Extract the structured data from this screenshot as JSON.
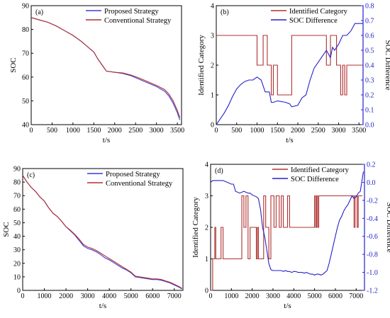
{
  "colors": {
    "blue": "#3b3bd6",
    "red": "#b03030",
    "axis_right_blue": "#2222cc"
  },
  "chart_data": [
    {
      "id": "a",
      "type": "line",
      "panel_label": "(a)",
      "xlabel": "t/s",
      "ylabel": "SOC",
      "xlim": [
        0,
        3600
      ],
      "ylim": [
        40,
        90
      ],
      "xticks": [
        0,
        500,
        1000,
        1500,
        2000,
        2500,
        3000,
        3500
      ],
      "yticks": [
        40,
        50,
        60,
        70,
        80,
        90
      ],
      "legend_position": "top-right",
      "series": [
        {
          "name": "Proposed Strategy",
          "color": "#3b3bd6",
          "x": [
            0,
            200,
            400,
            600,
            800,
            1000,
            1200,
            1400,
            1500,
            1600,
            1700,
            1800,
            2000,
            2200,
            2400,
            2600,
            2800,
            3000,
            3200,
            3300,
            3400,
            3500,
            3560
          ],
          "y": [
            85,
            84,
            83,
            81.5,
            79.5,
            77.5,
            75,
            72,
            70.5,
            67.5,
            65,
            62.5,
            62,
            61.5,
            60.5,
            59,
            57.5,
            56,
            54,
            52,
            49,
            45,
            42
          ]
        },
        {
          "name": "Conventional Strategy",
          "color": "#b03030",
          "x": [
            0,
            200,
            400,
            600,
            800,
            1000,
            1200,
            1400,
            1500,
            1600,
            1700,
            1800,
            2000,
            2200,
            2400,
            2600,
            2800,
            3000,
            3200,
            3300,
            3400,
            3500,
            3560
          ],
          "y": [
            85,
            84,
            83,
            81.5,
            79.5,
            77.5,
            75,
            72,
            70.5,
            67.5,
            65,
            62.5,
            62,
            61.7,
            60.8,
            59.5,
            58,
            56.5,
            54.7,
            52.8,
            50,
            46,
            43
          ]
        }
      ]
    },
    {
      "id": "b",
      "type": "line",
      "panel_label": "(b)",
      "xlabel": "t/s",
      "ylabel": "Identified Category",
      "y2label": "SOC Difference",
      "xlim": [
        0,
        3600
      ],
      "ylim": [
        0,
        4
      ],
      "y2lim": [
        0,
        0.8
      ],
      "xticks": [
        0,
        500,
        1000,
        1500,
        2000,
        2500,
        3000,
        3500
      ],
      "yticks": [
        0,
        1,
        2,
        3,
        4
      ],
      "y2ticks": [
        0.0,
        0.1,
        0.2,
        0.3,
        0.4,
        0.5,
        0.6,
        0.7,
        0.8
      ],
      "legend_position": "top-right",
      "series": [
        {
          "name": "Identified Category",
          "color": "#b03030",
          "axis": "left",
          "step": true,
          "x": [
            0,
            1000,
            1000,
            1150,
            1150,
            1250,
            1250,
            1350,
            1350,
            1400,
            1400,
            1500,
            1500,
            1850,
            1850,
            2700,
            2700,
            2800,
            2800,
            2950,
            2950,
            3050,
            3050,
            3100,
            3100,
            3150,
            3150,
            3200,
            3200,
            3600
          ],
          "y": [
            3,
            3,
            2,
            2,
            3,
            3,
            2,
            2,
            1,
            1,
            2,
            2,
            1,
            1,
            3,
            3,
            2,
            2,
            3,
            3,
            2,
            2,
            1,
            1,
            2,
            2,
            1,
            1,
            2,
            2
          ]
        },
        {
          "name": "SOC Difference",
          "color": "#2222cc",
          "axis": "right",
          "x": [
            0,
            50,
            100,
            200,
            300,
            400,
            500,
            600,
            700,
            800,
            900,
            1000,
            1100,
            1200,
            1300,
            1350,
            1400,
            1500,
            1700,
            1800,
            1850,
            2000,
            2100,
            2200,
            2300,
            2400,
            2500,
            2600,
            2700,
            2800,
            2850,
            2900,
            3000,
            3100,
            3200,
            3300,
            3400,
            3500,
            3600
          ],
          "y": [
            0,
            0.02,
            0.04,
            0.08,
            0.13,
            0.19,
            0.24,
            0.27,
            0.29,
            0.3,
            0.3,
            0.32,
            0.3,
            0.22,
            0.22,
            0.15,
            0.15,
            0.16,
            0.15,
            0.14,
            0.12,
            0.13,
            0.18,
            0.2,
            0.3,
            0.38,
            0.42,
            0.46,
            0.5,
            0.45,
            0.52,
            0.5,
            0.54,
            0.6,
            0.6,
            0.63,
            0.68,
            0.68,
            0.68
          ]
        }
      ]
    },
    {
      "id": "c",
      "type": "line",
      "panel_label": "(c)",
      "xlabel": "t/s",
      "ylabel": "SOC",
      "xlim": [
        0,
        7400
      ],
      "ylim": [
        0,
        90
      ],
      "xticks": [
        0,
        1000,
        2000,
        3000,
        4000,
        5000,
        6000,
        7000
      ],
      "yticks": [
        0,
        10,
        20,
        30,
        40,
        50,
        60,
        70,
        80,
        90
      ],
      "legend_position": "top-right",
      "series": [
        {
          "name": "Proposed Strategy",
          "color": "#3b3bd6",
          "x": [
            0,
            200,
            400,
            600,
            800,
            1000,
            1200,
            1400,
            1600,
            1800,
            2000,
            2200,
            2400,
            2600,
            2800,
            3000,
            3200,
            3400,
            3600,
            3800,
            4000,
            4200,
            4400,
            4600,
            4800,
            5000,
            5200,
            5400,
            5600,
            5800,
            6000,
            6200,
            6400,
            6600,
            6800,
            7000,
            7200,
            7350
          ],
          "y": [
            85,
            80,
            76,
            73,
            69,
            66,
            61,
            57,
            54.5,
            51,
            47,
            44,
            41,
            37,
            33,
            31,
            30,
            28.5,
            26.5,
            24,
            22.5,
            20.5,
            18.5,
            16.5,
            15,
            13,
            10,
            9.5,
            9,
            8.5,
            8,
            8,
            7.5,
            6.5,
            5.5,
            4,
            2.5,
            1
          ]
        },
        {
          "name": "Conventional Strategy",
          "color": "#b03030",
          "x": [
            0,
            200,
            400,
            600,
            800,
            1000,
            1200,
            1400,
            1600,
            1800,
            2000,
            2200,
            2400,
            2600,
            2800,
            3000,
            3200,
            3400,
            3600,
            3800,
            4000,
            4200,
            4400,
            4600,
            4800,
            5000,
            5200,
            5400,
            5600,
            5800,
            6000,
            6200,
            6400,
            6600,
            6800,
            7000,
            7200,
            7350
          ],
          "y": [
            85,
            80,
            76,
            73,
            69,
            66,
            61,
            57,
            54.5,
            51,
            47,
            44.5,
            41.5,
            38,
            34,
            32,
            31,
            29.5,
            27.5,
            25.5,
            23.5,
            21.5,
            19.5,
            17.5,
            15.5,
            13.5,
            10.5,
            10,
            9.5,
            9,
            8.5,
            8.5,
            8,
            7,
            6,
            4.5,
            3,
            1.5
          ]
        }
      ]
    },
    {
      "id": "d",
      "type": "line",
      "panel_label": "(d)",
      "xlabel": "t/s",
      "ylabel": "Identified Category",
      "y2label": "SOC Difference",
      "xlim": [
        0,
        7400
      ],
      "ylim": [
        0,
        4
      ],
      "y2lim": [
        -1.2,
        0.2
      ],
      "xticks": [
        0,
        1000,
        2000,
        3000,
        4000,
        5000,
        6000,
        7000
      ],
      "yticks": [
        0,
        1,
        2,
        3,
        4
      ],
      "y2ticks": [
        -1.2,
        -1.0,
        -0.8,
        -0.6,
        -0.4,
        -0.2,
        0.0,
        0.2
      ],
      "legend_position": "top-right",
      "series": [
        {
          "name": "Identified Category",
          "color": "#b03030",
          "axis": "left",
          "step": true,
          "x": [
            0,
            100,
            100,
            200,
            200,
            250,
            250,
            300,
            300,
            500,
            500,
            600,
            600,
            700,
            700,
            1500,
            1500,
            1600,
            1600,
            1700,
            1700,
            1800,
            1800,
            1900,
            1900,
            2200,
            2200,
            2250,
            2250,
            2300,
            2300,
            2550,
            2550,
            2650,
            2650,
            2800,
            2800,
            2900,
            2900,
            3050,
            3050,
            3150,
            3150,
            3300,
            3300,
            3400,
            3400,
            3500,
            3500,
            3700,
            3700,
            3800,
            3800,
            5000,
            5000,
            5050,
            5050,
            5100,
            5100,
            5150,
            5150,
            5200,
            5200,
            5300,
            5300,
            6900,
            6900,
            6950,
            6950,
            7050,
            7050,
            7100,
            7100,
            7150,
            7150,
            7300
          ],
          "y": [
            0,
            0,
            1,
            1,
            2,
            2,
            1,
            1,
            1,
            1,
            2,
            2,
            1,
            1,
            1,
            1,
            3,
            3,
            2,
            2,
            3,
            3,
            1,
            1,
            2,
            2,
            1,
            1,
            2,
            2,
            1,
            1,
            3,
            3,
            2,
            2,
            1,
            1,
            3,
            3,
            2,
            2,
            3,
            3,
            2,
            2,
            3,
            3,
            2,
            2,
            3,
            3,
            2,
            2,
            3,
            3,
            2,
            2,
            3,
            3,
            2,
            2,
            3,
            3,
            3,
            3,
            2,
            2,
            3,
            3,
            2,
            2,
            3,
            3,
            3,
            3
          ]
        },
        {
          "name": "SOC Difference",
          "color": "#2222cc",
          "axis": "right",
          "x": [
            0,
            100,
            300,
            600,
            800,
            1000,
            1100,
            1200,
            1400,
            1600,
            1800,
            1900,
            2000,
            2200,
            2300,
            2400,
            2500,
            2600,
            2700,
            2800,
            2900,
            3000,
            3100,
            3200,
            3300,
            3400,
            3500,
            3600,
            3700,
            3800,
            3900,
            4000,
            4100,
            4200,
            4300,
            4400,
            4500,
            4600,
            4700,
            4800,
            4900,
            5000,
            5100,
            5200,
            5300,
            5400,
            5500,
            5600,
            5700,
            5800,
            5900,
            6000,
            6100,
            6200,
            6300,
            6400,
            6500,
            6600,
            6700,
            6800,
            6900,
            7000,
            7100,
            7200,
            7300,
            7350
          ],
          "y": [
            0,
            0.02,
            0.02,
            0.02,
            0,
            -0.02,
            -0.02,
            -0.1,
            -0.12,
            -0.1,
            -0.12,
            -0.12,
            -0.14,
            -0.16,
            -0.18,
            -0.3,
            -0.5,
            -0.6,
            -0.75,
            -0.9,
            -0.97,
            -0.98,
            -0.98,
            -0.98,
            -0.98,
            -0.98,
            -0.99,
            -0.98,
            -0.99,
            -0.99,
            -1.0,
            -0.99,
            -0.99,
            -1.0,
            -1.0,
            -1.0,
            -1.01,
            -1.0,
            -1.01,
            -1.02,
            -1.02,
            -1.03,
            -1.02,
            -1.02,
            -1.03,
            -1.02,
            -1.0,
            -0.98,
            -0.9,
            -0.8,
            -0.7,
            -0.6,
            -0.5,
            -0.42,
            -0.38,
            -0.32,
            -0.28,
            -0.25,
            -0.2,
            -0.15,
            -0.18,
            -0.16,
            -0.12,
            -0.1,
            0.05,
            0.12
          ]
        }
      ]
    }
  ]
}
